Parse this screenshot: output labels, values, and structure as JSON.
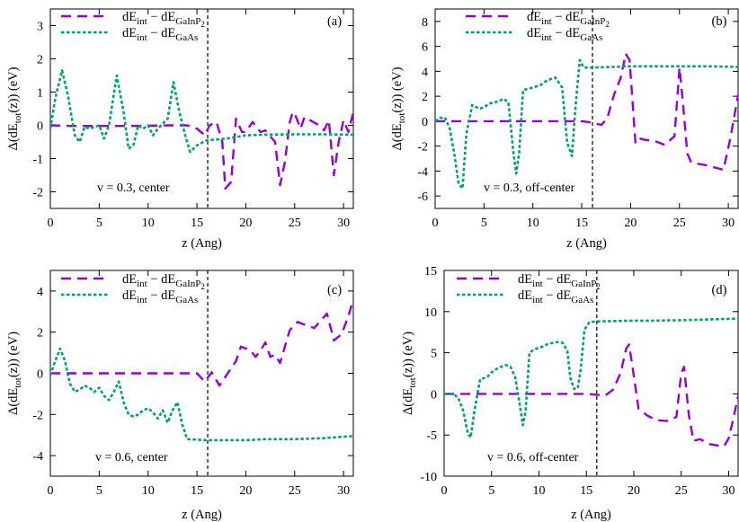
{
  "colors": {
    "gainp": "#9400d3",
    "gaas": "#009e73",
    "axis": "#000000",
    "interface": "#000000"
  },
  "legend": {
    "gainp": {
      "main": "dE",
      "sub1": "int",
      "dash": " − dE",
      "sub2": "GaInP",
      "sub3": "2"
    },
    "gaas": {
      "main": "dE",
      "sub1": "int",
      "dash": " − dE",
      "sub2": "GaAs"
    }
  },
  "ylabel": {
    "pre": "Δ(dE",
    "sub": "tot",
    "post": "(z)) (eV)"
  },
  "xlabel": "z (Ang)",
  "chart_data": [
    {
      "type": "line",
      "tag": "(a)",
      "annotation": "v = 0.3, center",
      "x_ticks": [
        0,
        5,
        10,
        15,
        20,
        25,
        30
      ],
      "xlim": [
        0,
        31
      ],
      "y_ticks": [
        -2,
        -1,
        0,
        1,
        2,
        3
      ],
      "ylim": [
        -2.5,
        3.5
      ],
      "interface_z": 16.1,
      "series": [
        {
          "name": "dE_int − dE_GaInP2",
          "x": [
            0,
            2,
            4,
            6,
            8,
            10,
            12,
            14,
            15,
            15.8,
            16.3,
            17,
            17.6,
            17.9,
            18.5,
            19,
            19.6,
            20,
            20.7,
            21.5,
            22,
            23,
            23.5,
            24,
            24.5,
            24.8,
            25,
            25.6,
            26,
            27.5,
            28,
            28.5,
            29,
            29.5,
            30,
            30.5,
            31
          ],
          "y": [
            0,
            -0.02,
            -0.02,
            -0.02,
            -0.02,
            -0.01,
            0,
            0,
            -0.1,
            -0.3,
            0,
            0.1,
            -0.5,
            -1.9,
            -1.7,
            0.2,
            -0.2,
            -0.2,
            0.1,
            -0.2,
            -0.15,
            -0.5,
            -1.8,
            -1.1,
            0.1,
            0.4,
            0.35,
            -0.1,
            0.25,
            0,
            -0.15,
            0.15,
            -1.5,
            -0.5,
            0.15,
            -0.2,
            0.4
          ]
        },
        {
          "name": "dE_int − dE_GaAs",
          "x": [
            0,
            0.5,
            1.2,
            1.8,
            2.5,
            3,
            3.5,
            4,
            5,
            5.5,
            6,
            6.8,
            7.5,
            8,
            8.5,
            9,
            9.5,
            10,
            10.5,
            11,
            12,
            12.6,
            13.2,
            13.8,
            14.3,
            15,
            16,
            18,
            20,
            22,
            25,
            28,
            31
          ],
          "y": [
            -0.1,
            0.8,
            1.65,
            0.9,
            -0.3,
            -0.5,
            -0.05,
            -0.1,
            0,
            -0.4,
            0,
            1.5,
            0.4,
            -0.7,
            -0.6,
            0,
            -0.1,
            0,
            -0.3,
            -0.1,
            0.2,
            1.3,
            0.4,
            -0.3,
            -0.8,
            -0.6,
            -0.45,
            -0.4,
            -0.3,
            -0.28,
            -0.27,
            -0.27,
            -0.28
          ]
        }
      ]
    },
    {
      "type": "line",
      "tag": "(b)",
      "annotation": "v = 0.3, off-center",
      "x_ticks": [
        0,
        5,
        10,
        15,
        20,
        25,
        30
      ],
      "xlim": [
        0,
        31
      ],
      "y_ticks": [
        -6,
        -4,
        -2,
        0,
        2,
        4,
        6,
        8
      ],
      "ylim": [
        -7,
        9
      ],
      "interface_z": 16.1,
      "series": [
        {
          "name": "dE_int − dE_GaInP2",
          "x": [
            0,
            5,
            10,
            14,
            15,
            16,
            17,
            17.6,
            18.3,
            19,
            19.5,
            19.9,
            20.5,
            21,
            21.5,
            22.5,
            23.5,
            24.5,
            25,
            25.3,
            25.8,
            26.2,
            26.8,
            27.5,
            28.5,
            29.5,
            30.2,
            31
          ],
          "y": [
            0,
            0,
            0,
            0,
            0,
            -0.1,
            -0.3,
            0.2,
            2.1,
            3.5,
            5.4,
            4.9,
            -1.8,
            -1.4,
            -1.5,
            -1.6,
            -1.9,
            -1.2,
            4.3,
            2,
            -2.6,
            -3.3,
            -3.4,
            -3.5,
            -3.7,
            -3.9,
            -1.4,
            2.1
          ]
        },
        {
          "name": "dE_int − dE_GaAs",
          "x": [
            0,
            0.5,
            1,
            1.5,
            2,
            2.4,
            2.8,
            3.2,
            3.8,
            4.5,
            5,
            5.5,
            6,
            6.5,
            7,
            7.5,
            8,
            8.3,
            8.6,
            9,
            9.5,
            10,
            10.8,
            11.5,
            12.3,
            13,
            13.5,
            14,
            14.4,
            14.8,
            15.2,
            15.6,
            16,
            18,
            20,
            22,
            25,
            28,
            31
          ],
          "y": [
            0,
            0.25,
            0.3,
            -0.6,
            -2.8,
            -5,
            -5.4,
            -1,
            1.3,
            1,
            1.1,
            1.4,
            1.5,
            1.6,
            1.8,
            1.5,
            -2.5,
            -4.2,
            -2.5,
            2.5,
            2.6,
            2.7,
            2.9,
            3.3,
            3.5,
            2.7,
            -1.7,
            -2.8,
            1.5,
            4.9,
            4.3,
            4.3,
            4.3,
            4.35,
            4.4,
            4.4,
            4.4,
            4.4,
            4.35
          ]
        }
      ]
    },
    {
      "type": "line",
      "tag": "(c)",
      "annotation": "v = 0.6, center",
      "x_ticks": [
        0,
        5,
        10,
        15,
        20,
        25,
        30
      ],
      "xlim": [
        0,
        31
      ],
      "y_ticks": [
        -4,
        -2,
        0,
        2,
        4
      ],
      "ylim": [
        -5,
        5
      ],
      "interface_z": 16.1,
      "series": [
        {
          "name": "dE_int − dE_GaInP2",
          "x": [
            0,
            5,
            10,
            14,
            15,
            15.8,
            16.5,
            17.3,
            18,
            19,
            19.5,
            20.5,
            21,
            21.5,
            22,
            22.5,
            23,
            23.5,
            24.5,
            25.3,
            25.8,
            27,
            28.3,
            28.8,
            29,
            29.8,
            30.5,
            31
          ],
          "y": [
            0,
            0,
            0,
            0,
            0,
            -0.4,
            0.05,
            -0.6,
            -0.1,
            0.6,
            1.3,
            1.1,
            0.8,
            1.1,
            1.5,
            0.8,
            0.9,
            0.5,
            2.1,
            2.5,
            2.4,
            2.2,
            2.9,
            2,
            1.6,
            1.9,
            2.8,
            3.6
          ]
        },
        {
          "name": "dE_int − dE_GaAs",
          "x": [
            0,
            0.5,
            1,
            1.5,
            2,
            2.5,
            3,
            3.5,
            4,
            4.5,
            5,
            5.5,
            6,
            6.5,
            7,
            7.5,
            8,
            8.5,
            9,
            9.5,
            10,
            10.5,
            11,
            11.5,
            12,
            12.5,
            13,
            13.5,
            14,
            16,
            18,
            20,
            22,
            25,
            28,
            31
          ],
          "y": [
            -0.1,
            0.6,
            1.2,
            0.6,
            -0.5,
            -0.9,
            -0.8,
            -0.6,
            -0.7,
            -0.9,
            -0.7,
            -1.1,
            -1.3,
            -0.9,
            -0.4,
            -1.4,
            -2,
            -2.1,
            -2,
            -1.8,
            -1.7,
            -1.9,
            -2.2,
            -1.8,
            -2.4,
            -1.8,
            -1.4,
            -2.5,
            -3.2,
            -3.25,
            -3.25,
            -3.25,
            -3.2,
            -3.2,
            -3.15,
            -3.05
          ]
        }
      ]
    },
    {
      "type": "line",
      "tag": "(d)",
      "annotation": "v = 0.6, off-center",
      "x_ticks": [
        0,
        5,
        10,
        15,
        20,
        25,
        30
      ],
      "xlim": [
        0,
        31
      ],
      "y_ticks": [
        -10,
        -5,
        0,
        5,
        10,
        15
      ],
      "ylim": [
        -10,
        15
      ],
      "interface_z": 16.1,
      "series": [
        {
          "name": "dE_int − dE_GaInP2",
          "x": [
            0,
            5,
            10,
            14,
            15,
            16,
            17,
            17.8,
            18.6,
            19.2,
            19.5,
            20,
            20.5,
            21.5,
            22.5,
            23.5,
            24.5,
            25,
            25.3,
            25.8,
            26.3,
            27,
            28,
            29,
            29.5,
            30,
            30.5,
            31
          ],
          "y": [
            0,
            0,
            0,
            0,
            0,
            -0.1,
            -0.2,
            0.5,
            2.5,
            5.5,
            6,
            2.2,
            -1.8,
            -2.7,
            -3.2,
            -3.3,
            -2.8,
            2.5,
            3.3,
            -2.5,
            -5.7,
            -5.5,
            -6.1,
            -6.3,
            -6.4,
            -5.4,
            -3,
            -0.3
          ]
        },
        {
          "name": "dE_int − dE_GaAs",
          "x": [
            0,
            0.5,
            1,
            1.5,
            2,
            2.5,
            2.8,
            3.2,
            3.8,
            4.5,
            5,
            5.5,
            6,
            6.5,
            7,
            7.5,
            8,
            8.3,
            8.6,
            9,
            9.5,
            10,
            10.5,
            11,
            11.5,
            12,
            12.5,
            13,
            13.3,
            13.7,
            14.1,
            14.4,
            14.8,
            15.3,
            16,
            18,
            20,
            22,
            25,
            28,
            31
          ],
          "y": [
            0,
            0,
            0,
            -0.5,
            -2,
            -4.8,
            -5.3,
            -2,
            1.8,
            2,
            2.6,
            3,
            3.3,
            3.5,
            3.3,
            2,
            -1.5,
            -3.8,
            -2,
            5,
            5.4,
            5.6,
            5.8,
            6.1,
            6.2,
            6.3,
            6.2,
            5.2,
            2,
            0.6,
            0.7,
            3,
            7.8,
            8.7,
            8.8,
            8.85,
            8.9,
            8.9,
            8.95,
            9.05,
            9.15
          ]
        }
      ]
    }
  ]
}
